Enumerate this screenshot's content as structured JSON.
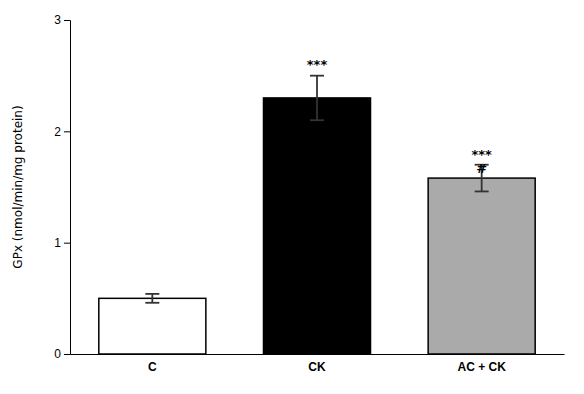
{
  "chart_data": {
    "type": "bar",
    "categories": [
      "C",
      "CK",
      "AC + CK"
    ],
    "values": [
      0.5,
      2.3,
      1.58
    ],
    "errors": [
      0.04,
      0.2,
      0.12
    ],
    "colors": [
      "#ffffff",
      "#000000",
      "#aaaaaa"
    ],
    "ylabel": "GPx (nmol/min/mg protein)",
    "ylim": [
      0,
      3.0
    ],
    "yticks": [
      0,
      1,
      2,
      3
    ],
    "grid": false,
    "annotations": [
      {
        "text": "***",
        "x": "CK",
        "y": 2.54
      },
      {
        "text": "***",
        "x": "AC + CK",
        "y": 1.73
      },
      {
        "text": "#",
        "x": "AC + CK",
        "y": 1.6
      }
    ]
  }
}
